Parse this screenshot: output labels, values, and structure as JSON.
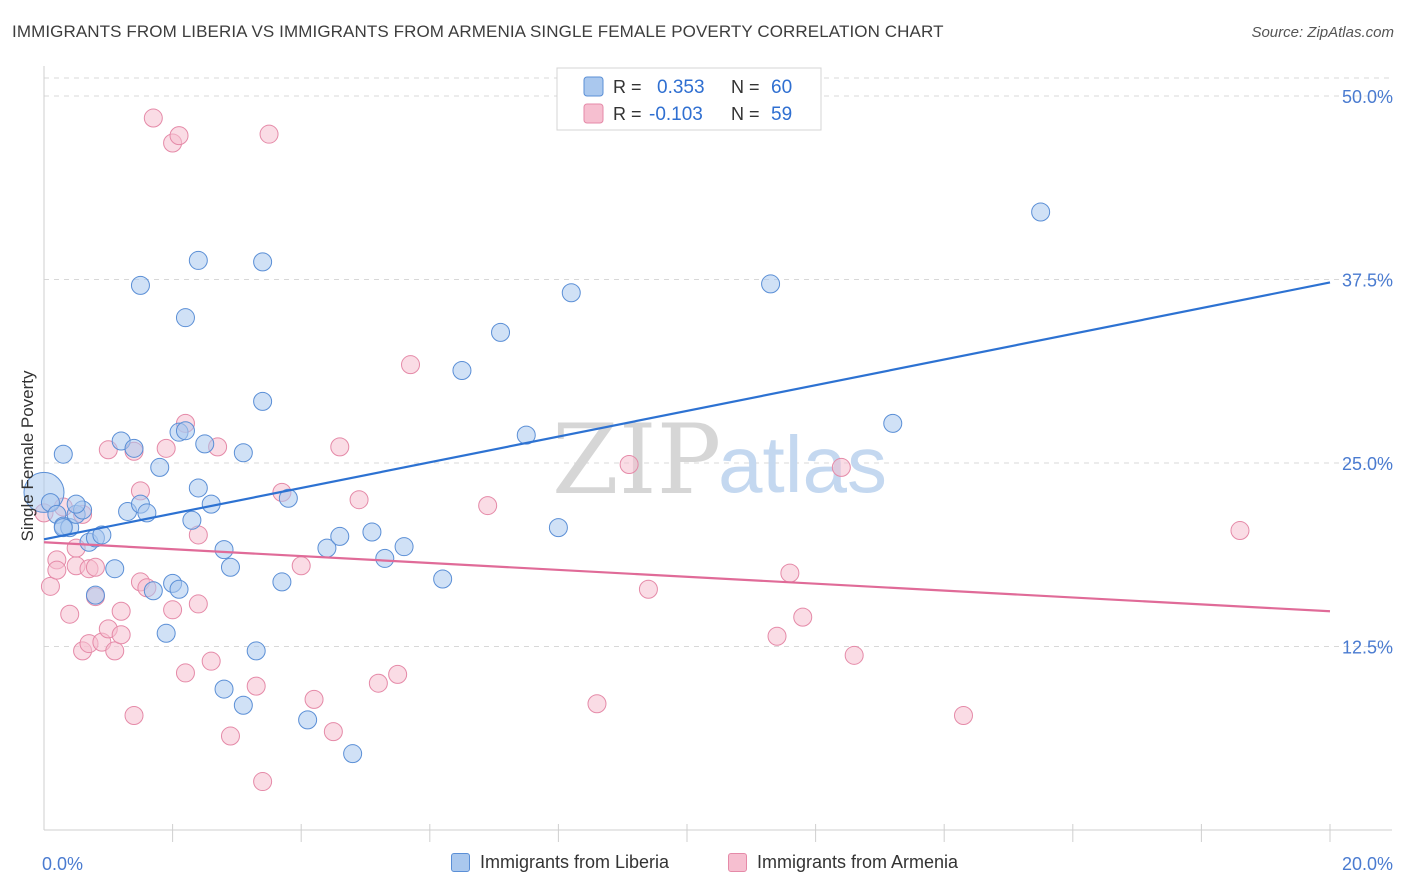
{
  "title": "IMMIGRANTS FROM LIBERIA VS IMMIGRANTS FROM ARMENIA SINGLE FEMALE POVERTY CORRELATION CHART",
  "source": "Source: ZipAtlas.com",
  "colors": {
    "series1_fill": "#aac8ee",
    "series1_stroke": "#5b8fd6",
    "series1_line": "#2d72d2",
    "series2_fill": "#f6bfd0",
    "series2_stroke": "#e58aa8",
    "series2_line": "#e06b98",
    "grid": "#d8d8d8",
    "tick_label": "#4a7bd0",
    "watermark_zip": "#d2d2d2",
    "watermark_atlas": "#bcd2ee"
  },
  "watermark": {
    "zip": "ZIP",
    "atlas": "atlas"
  },
  "chart_data": {
    "type": "scatter",
    "title": "IMMIGRANTS FROM LIBERIA VS IMMIGRANTS FROM ARMENIA SINGLE FEMALE POVERTY CORRELATION CHART",
    "xlabel": "",
    "ylabel": "Single Female Poverty",
    "xlim": [
      0,
      20
    ],
    "ylim": [
      0,
      51.5
    ],
    "x_tick_labels": [
      "0.0%",
      "20.0%"
    ],
    "y_ticks": [
      12.5,
      25.0,
      37.5,
      50.0
    ],
    "y_tick_labels": [
      "12.5%",
      "25.0%",
      "37.5%",
      "50.0%"
    ],
    "grid": true,
    "legend_position": "top-center",
    "series": [
      {
        "name": "Immigrants from Liberia",
        "R": "0.353",
        "N": "60",
        "trend": [
          [
            0,
            19.8
          ],
          [
            20,
            37.3
          ]
        ],
        "points": [
          [
            0.0,
            23.0
          ],
          [
            0.1,
            22.3
          ],
          [
            0.2,
            21.5
          ],
          [
            0.3,
            25.6
          ],
          [
            0.3,
            20.7
          ],
          [
            0.4,
            20.6
          ],
          [
            0.5,
            21.5
          ],
          [
            0.6,
            21.8
          ],
          [
            0.7,
            19.6
          ],
          [
            0.8,
            19.9
          ],
          [
            0.8,
            16.0
          ],
          [
            0.9,
            20.1
          ],
          [
            1.1,
            17.8
          ],
          [
            1.2,
            26.5
          ],
          [
            1.3,
            21.7
          ],
          [
            1.4,
            26.0
          ],
          [
            1.5,
            22.2
          ],
          [
            1.5,
            37.1
          ],
          [
            1.6,
            21.6
          ],
          [
            1.7,
            16.3
          ],
          [
            1.8,
            24.7
          ],
          [
            1.9,
            13.4
          ],
          [
            2.0,
            16.8
          ],
          [
            2.1,
            27.1
          ],
          [
            2.1,
            16.4
          ],
          [
            2.2,
            34.9
          ],
          [
            2.2,
            27.2
          ],
          [
            2.3,
            21.1
          ],
          [
            2.4,
            23.3
          ],
          [
            2.4,
            38.8
          ],
          [
            2.5,
            26.3
          ],
          [
            2.6,
            22.2
          ],
          [
            2.8,
            9.6
          ],
          [
            2.8,
            19.1
          ],
          [
            2.9,
            17.9
          ],
          [
            3.1,
            25.7
          ],
          [
            3.1,
            8.5
          ],
          [
            3.3,
            12.2
          ],
          [
            3.4,
            38.7
          ],
          [
            3.4,
            29.2
          ],
          [
            3.7,
            16.9
          ],
          [
            3.8,
            22.6
          ],
          [
            4.1,
            7.5
          ],
          [
            4.4,
            19.2
          ],
          [
            4.6,
            20.0
          ],
          [
            4.8,
            5.2
          ],
          [
            5.1,
            20.3
          ],
          [
            5.3,
            18.5
          ],
          [
            5.6,
            19.3
          ],
          [
            6.2,
            17.1
          ],
          [
            6.5,
            31.3
          ],
          [
            7.1,
            33.9
          ],
          [
            7.5,
            26.9
          ],
          [
            8.0,
            20.6
          ],
          [
            8.2,
            36.6
          ],
          [
            11.3,
            37.2
          ],
          [
            13.2,
            27.7
          ],
          [
            15.5,
            42.1
          ],
          [
            0.3,
            20.6
          ],
          [
            0.5,
            22.2
          ]
        ]
      },
      {
        "name": "Immigrants from Armenia",
        "R": "-0.103",
        "N": "59",
        "trend": [
          [
            0,
            19.6
          ],
          [
            20,
            14.9
          ]
        ],
        "points": [
          [
            0.0,
            21.6
          ],
          [
            0.1,
            16.6
          ],
          [
            0.2,
            18.4
          ],
          [
            0.2,
            17.7
          ],
          [
            0.3,
            22.0
          ],
          [
            0.4,
            14.7
          ],
          [
            0.5,
            18.0
          ],
          [
            0.5,
            19.2
          ],
          [
            0.6,
            12.2
          ],
          [
            0.6,
            21.5
          ],
          [
            0.7,
            12.7
          ],
          [
            0.7,
            17.8
          ],
          [
            0.8,
            17.9
          ],
          [
            0.8,
            15.9
          ],
          [
            0.9,
            12.8
          ],
          [
            1.0,
            25.9
          ],
          [
            1.0,
            13.7
          ],
          [
            1.1,
            12.2
          ],
          [
            1.2,
            13.3
          ],
          [
            1.2,
            14.9
          ],
          [
            1.4,
            7.8
          ],
          [
            1.4,
            25.8
          ],
          [
            1.5,
            23.1
          ],
          [
            1.5,
            16.9
          ],
          [
            1.6,
            16.5
          ],
          [
            1.7,
            48.5
          ],
          [
            1.9,
            26.0
          ],
          [
            2.0,
            46.8
          ],
          [
            2.0,
            15.0
          ],
          [
            2.1,
            47.3
          ],
          [
            2.2,
            10.7
          ],
          [
            2.2,
            27.7
          ],
          [
            2.4,
            15.4
          ],
          [
            2.4,
            20.1
          ],
          [
            2.6,
            11.5
          ],
          [
            2.7,
            26.1
          ],
          [
            2.9,
            6.4
          ],
          [
            3.3,
            9.8
          ],
          [
            3.4,
            3.3
          ],
          [
            3.5,
            47.4
          ],
          [
            3.7,
            23.0
          ],
          [
            4.0,
            18.0
          ],
          [
            4.2,
            8.9
          ],
          [
            4.5,
            6.7
          ],
          [
            4.6,
            26.1
          ],
          [
            4.9,
            22.5
          ],
          [
            5.2,
            10.0
          ],
          [
            5.5,
            10.6
          ],
          [
            5.7,
            31.7
          ],
          [
            6.9,
            22.1
          ],
          [
            8.6,
            8.6
          ],
          [
            9.1,
            24.9
          ],
          [
            9.4,
            16.4
          ],
          [
            11.4,
            13.2
          ],
          [
            11.6,
            17.5
          ],
          [
            11.8,
            14.5
          ],
          [
            12.4,
            24.7
          ],
          [
            12.6,
            11.9
          ],
          [
            14.3,
            7.8
          ]
        ]
      }
    ],
    "extra_points": [
      [
        18.6,
        20.4
      ]
    ]
  }
}
